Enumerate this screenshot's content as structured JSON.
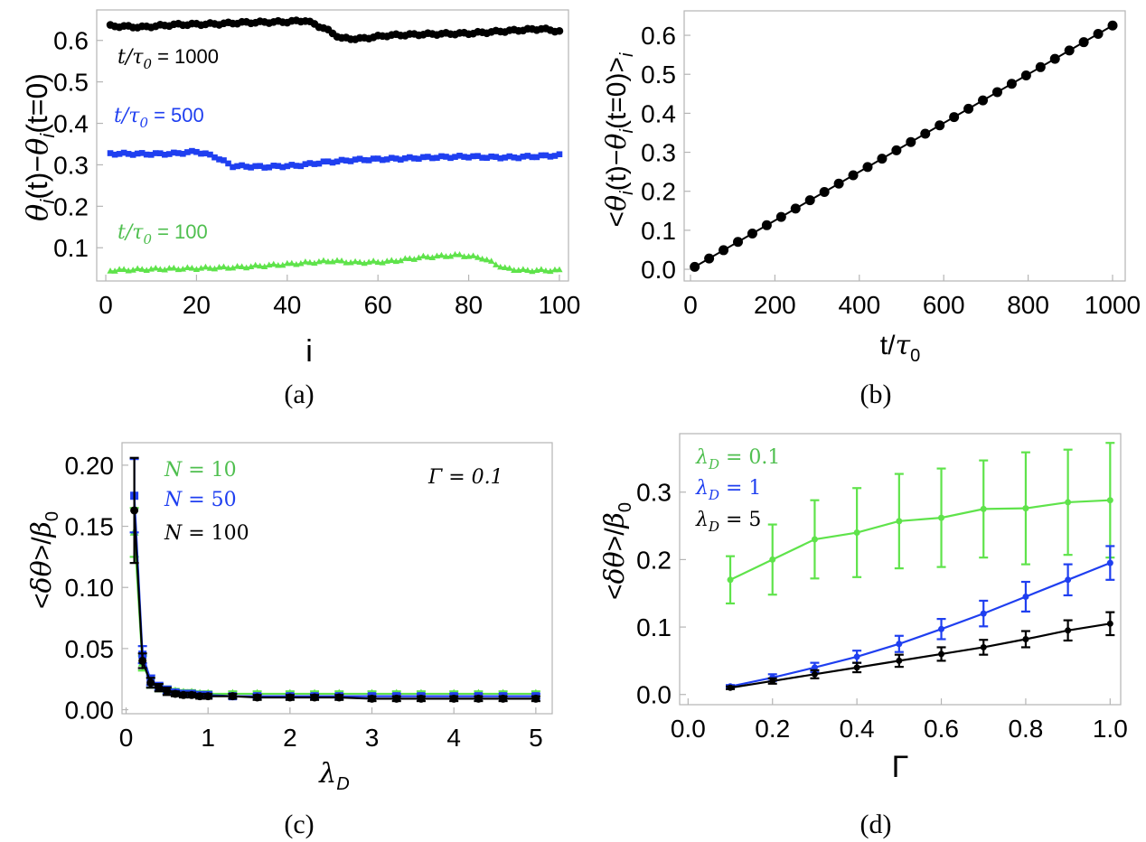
{
  "colors": {
    "green": "#5fe34b",
    "blue": "#1f3ff0",
    "black": "#000000",
    "frame": "#b5b5b5",
    "legend_green": "#4fbf4f"
  },
  "chart_data": [
    {
      "type": "scatter",
      "caption": "(a)",
      "xlabel": "i",
      "ylabel": "θi(t)−θi(t=0)",
      "xlim": [
        -2,
        102
      ],
      "ylim": [
        0.0199,
        0.6735
      ],
      "xticks": [
        "0",
        "20",
        "40",
        "60",
        "80",
        "100"
      ],
      "yticks": [
        "0.1",
        "0.2",
        "0.3",
        "0.4",
        "0.5",
        "0.6"
      ],
      "series": [
        {
          "name": "t/τ0 = 1000",
          "color": "black",
          "marker": "circle",
          "anchors": [
            [
              1,
              0.635
            ],
            [
              8,
              0.632
            ],
            [
              15,
              0.638
            ],
            [
              25,
              0.64
            ],
            [
              30,
              0.643
            ],
            [
              40,
              0.645
            ],
            [
              44,
              0.648
            ],
            [
              48,
              0.63
            ],
            [
              52,
              0.605
            ],
            [
              56,
              0.604
            ],
            [
              62,
              0.612
            ],
            [
              70,
              0.615
            ],
            [
              80,
              0.617
            ],
            [
              90,
              0.624
            ],
            [
              96,
              0.628
            ],
            [
              100,
              0.622
            ]
          ]
        },
        {
          "name": "t/τ0 = 500",
          "color": "blue",
          "marker": "square",
          "anchors": [
            [
              1,
              0.327
            ],
            [
              10,
              0.326
            ],
            [
              15,
              0.327
            ],
            [
              20,
              0.332
            ],
            [
              24,
              0.32
            ],
            [
              28,
              0.297
            ],
            [
              35,
              0.295
            ],
            [
              42,
              0.298
            ],
            [
              48,
              0.306
            ],
            [
              55,
              0.312
            ],
            [
              65,
              0.315
            ],
            [
              72,
              0.318
            ],
            [
              80,
              0.32
            ],
            [
              85,
              0.318
            ],
            [
              90,
              0.318
            ],
            [
              100,
              0.323
            ]
          ]
        },
        {
          "name": "t/τ0 = 100",
          "color": "green",
          "marker": "triangle",
          "anchors": [
            [
              1,
              0.045
            ],
            [
              10,
              0.048
            ],
            [
              20,
              0.05
            ],
            [
              30,
              0.053
            ],
            [
              40,
              0.06
            ],
            [
              50,
              0.068
            ],
            [
              55,
              0.064
            ],
            [
              62,
              0.066
            ],
            [
              70,
              0.077
            ],
            [
              78,
              0.082
            ],
            [
              83,
              0.075
            ],
            [
              88,
              0.05
            ],
            [
              92,
              0.045
            ],
            [
              100,
              0.045
            ]
          ]
        }
      ],
      "labels": [
        {
          "text": "t/τ0 = 1000",
          "color": "black"
        },
        {
          "text": "t/τ0 = 500",
          "color": "blue"
        },
        {
          "text": "t/τ0 = 100",
          "color": "legend_green"
        }
      ]
    },
    {
      "type": "scatter",
      "caption": "(b)",
      "xlabel": "t/τ0",
      "ylabel": "<θi(t)−θi(t=0)>i",
      "xlim": [
        -15,
        1030
      ],
      "ylim": [
        -0.03,
        0.6627
      ],
      "xticks": [
        "0",
        "200",
        "400",
        "600",
        "800",
        "1000"
      ],
      "yticks": [
        "0.0",
        "0.1",
        "0.2",
        "0.3",
        "0.4",
        "0.5",
        "0.6"
      ],
      "series": [
        {
          "name": "mean",
          "color": "black",
          "marker": "circle",
          "x_start": 10,
          "x_step": 34.14,
          "count": 30,
          "slope": 0.000625
        }
      ]
    },
    {
      "type": "line",
      "caption": "(c)",
      "xlabel": "λD",
      "ylabel": "<δθ>/β0",
      "xlim": [
        -0.05,
        5.2
      ],
      "ylim": [
        -0.0033,
        0.2184
      ],
      "xticks": [
        "0",
        "1",
        "2",
        "3",
        "4",
        "5"
      ],
      "yticks": [
        "0.00",
        "0.05",
        "0.10",
        "0.15",
        "0.20"
      ],
      "annotation": "Γ = 0.1",
      "series": [
        {
          "name": "N = 10",
          "color": "green",
          "marker": "triangle",
          "x": [
            0.1,
            0.2,
            0.3,
            0.4,
            0.5,
            0.6,
            0.7,
            0.8,
            0.9,
            1,
            1.3,
            1.6,
            2,
            2.3,
            2.6,
            3,
            3.3,
            3.6,
            4,
            4.3,
            4.6,
            5
          ],
          "y": [
            0.145,
            0.038,
            0.022,
            0.018,
            0.016,
            0.015,
            0.014,
            0.014,
            0.013,
            0.013,
            0.013,
            0.013,
            0.013,
            0.013,
            0.013,
            0.013,
            0.013,
            0.013,
            0.013,
            0.013,
            0.013,
            0.013
          ],
          "err": [
            0.02,
            0.006,
            0.004,
            0.003,
            0.003,
            0.002,
            0.002,
            0.002,
            0.002,
            0.002,
            0.002,
            0.002,
            0.002,
            0.002,
            0.002,
            0.002,
            0.002,
            0.002,
            0.002,
            0.002,
            0.002,
            0.002
          ]
        },
        {
          "name": "N = 50",
          "color": "blue",
          "marker": "square",
          "x": [
            0.1,
            0.2,
            0.3,
            0.4,
            0.5,
            0.6,
            0.7,
            0.8,
            0.9,
            1,
            1.3,
            1.6,
            2,
            2.3,
            2.6,
            3,
            3.3,
            3.6,
            4,
            4.3,
            4.6,
            5
          ],
          "y": [
            0.175,
            0.045,
            0.024,
            0.019,
            0.016,
            0.014,
            0.013,
            0.013,
            0.012,
            0.012,
            0.011,
            0.011,
            0.011,
            0.011,
            0.011,
            0.011,
            0.011,
            0.011,
            0.011,
            0.011,
            0.011,
            0.011
          ],
          "err": [
            0.03,
            0.007,
            0.004,
            0.003,
            0.003,
            0.002,
            0.002,
            0.002,
            0.002,
            0.002,
            0.002,
            0.002,
            0.002,
            0.002,
            0.002,
            0.002,
            0.002,
            0.002,
            0.002,
            0.002,
            0.002,
            0.002
          ]
        },
        {
          "name": "N = 100",
          "color": "black",
          "marker": "circle",
          "x": [
            0.1,
            0.2,
            0.3,
            0.4,
            0.5,
            0.6,
            0.7,
            0.8,
            0.9,
            1,
            1.3,
            1.6,
            2,
            2.3,
            2.6,
            3,
            3.3,
            3.6,
            4,
            4.3,
            4.6,
            5
          ],
          "y": [
            0.163,
            0.04,
            0.022,
            0.018,
            0.015,
            0.013,
            0.012,
            0.012,
            0.011,
            0.011,
            0.011,
            0.01,
            0.01,
            0.01,
            0.01,
            0.009,
            0.009,
            0.009,
            0.009,
            0.009,
            0.009,
            0.009
          ],
          "err": [
            0.043,
            0.006,
            0.004,
            0.003,
            0.003,
            0.002,
            0.002,
            0.002,
            0.002,
            0.002,
            0.002,
            0.002,
            0.002,
            0.002,
            0.002,
            0.002,
            0.002,
            0.002,
            0.002,
            0.002,
            0.002,
            0.002
          ]
        }
      ]
    },
    {
      "type": "line",
      "caption": "(d)",
      "xlabel": "Γ",
      "ylabel": "<δθ>/β0",
      "xlim": [
        -0.02,
        1.025
      ],
      "ylim": [
        -0.0151,
        0.3867
      ],
      "xticks": [
        "0.0",
        "0.2",
        "0.4",
        "0.6",
        "0.8",
        "1.0"
      ],
      "yticks": [
        "0.0",
        "0.1",
        "0.2",
        "0.3"
      ],
      "series": [
        {
          "name": "λD = 0.1",
          "color": "green",
          "marker": "circle",
          "x": [
            0.1,
            0.2,
            0.3,
            0.4,
            0.5,
            0.6,
            0.7,
            0.8,
            0.9,
            1.0
          ],
          "y": [
            0.17,
            0.2,
            0.23,
            0.24,
            0.257,
            0.262,
            0.275,
            0.276,
            0.285,
            0.288
          ],
          "err": [
            0.035,
            0.052,
            0.058,
            0.066,
            0.07,
            0.073,
            0.072,
            0.083,
            0.078,
            0.085
          ]
        },
        {
          "name": "λD = 1",
          "color": "blue",
          "marker": "circle",
          "x": [
            0.1,
            0.2,
            0.3,
            0.4,
            0.5,
            0.6,
            0.7,
            0.8,
            0.9,
            1.0
          ],
          "y": [
            0.012,
            0.025,
            0.04,
            0.056,
            0.075,
            0.097,
            0.12,
            0.145,
            0.17,
            0.195
          ],
          "err": [
            0.002,
            0.005,
            0.007,
            0.009,
            0.012,
            0.015,
            0.019,
            0.022,
            0.023,
            0.025
          ]
        },
        {
          "name": "λD = 5",
          "color": "black",
          "marker": "circle",
          "x": [
            0.1,
            0.2,
            0.3,
            0.4,
            0.5,
            0.6,
            0.7,
            0.8,
            0.9,
            1.0
          ],
          "y": [
            0.01,
            0.02,
            0.03,
            0.04,
            0.05,
            0.06,
            0.07,
            0.082,
            0.095,
            0.105
          ],
          "err": [
            0.002,
            0.004,
            0.006,
            0.007,
            0.009,
            0.01,
            0.011,
            0.012,
            0.015,
            0.017
          ]
        }
      ]
    }
  ]
}
